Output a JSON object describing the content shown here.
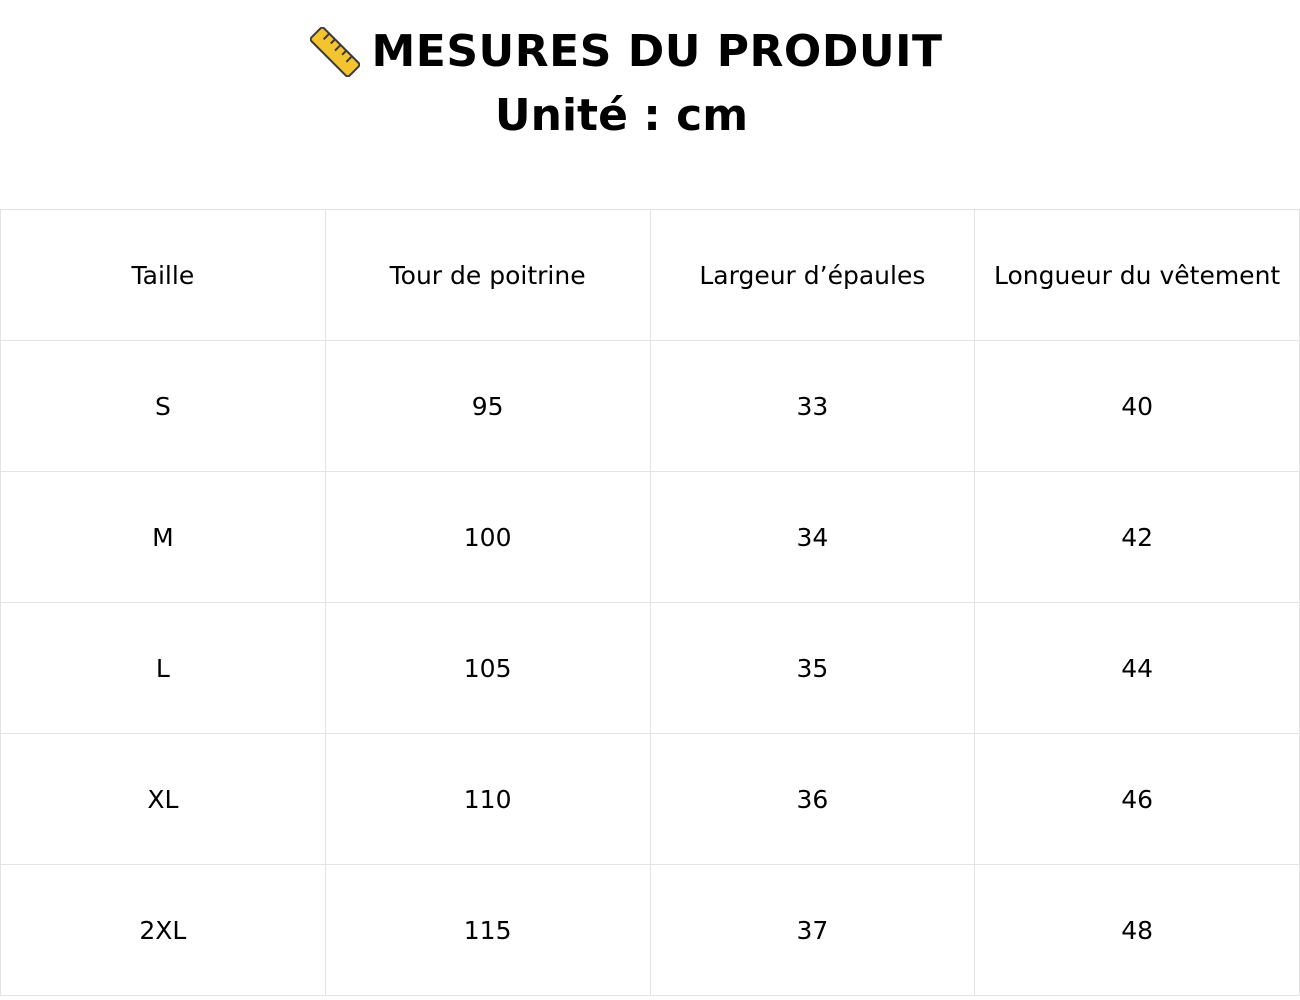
{
  "header": {
    "title": "MESURES DU PRODUIT",
    "subtitle": "Unité : cm"
  },
  "table": {
    "columns": [
      "Taille",
      "Tour de poitrine",
      "Largeur d’épaules",
      "Longueur du vêtement"
    ],
    "rows": [
      [
        "S",
        95,
        33,
        40
      ],
      [
        "M",
        100,
        34,
        42
      ],
      [
        "L",
        105,
        35,
        44
      ],
      [
        "XL",
        110,
        36,
        46
      ],
      [
        "2XL",
        115,
        37,
        48
      ]
    ]
  }
}
